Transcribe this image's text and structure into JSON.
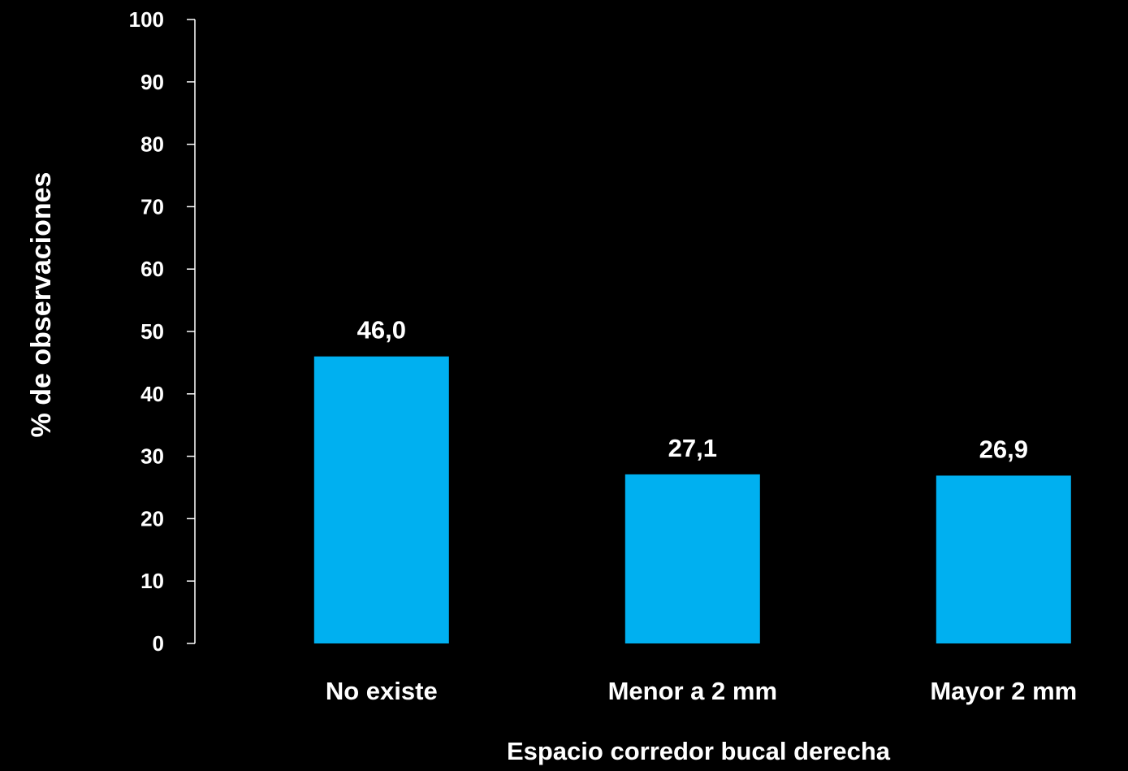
{
  "chart_data": {
    "type": "bar",
    "title": "",
    "xlabel": "Espacio corredor bucal derecha",
    "ylabel": "% de observaciones",
    "categories": [
      "No existe",
      "Menor a 2 mm",
      "Mayor 2 mm"
    ],
    "values": [
      46.0,
      27.1,
      26.9
    ],
    "data_labels": [
      "46,0",
      "27,1",
      "26,9"
    ],
    "ylim": [
      0,
      100
    ],
    "yticks": [
      0,
      10,
      20,
      30,
      40,
      50,
      60,
      70,
      80,
      90,
      100
    ],
    "ytick_labels": [
      "0",
      "10",
      "20",
      "30",
      "40",
      "50",
      "60",
      "70",
      "80",
      "90",
      "100"
    ],
    "grid": false,
    "legend": "none",
    "colors": {
      "background": "#000000",
      "bar": "#00B0F0",
      "text": "#ffffff",
      "axis": "#ffffff"
    }
  }
}
